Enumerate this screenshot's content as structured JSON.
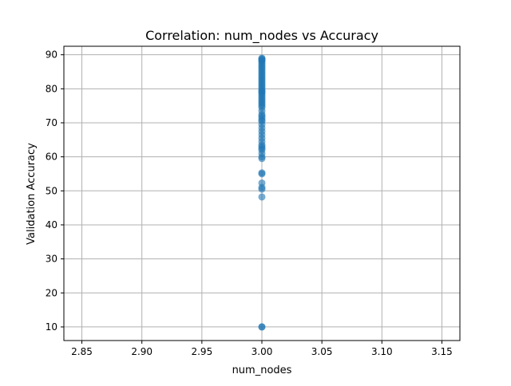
{
  "chart_data": {
    "type": "scatter",
    "title": "Correlation: num_nodes vs Accuracy",
    "xlabel": "num_nodes",
    "ylabel": "Validation Accuracy",
    "xlim": [
      2.835,
      3.165
    ],
    "ylim": [
      6.0,
      92.5
    ],
    "xticks": [
      2.85,
      2.9,
      2.95,
      3.0,
      3.05,
      3.1,
      3.15
    ],
    "xtick_labels": [
      "2.85",
      "2.90",
      "2.95",
      "3.00",
      "3.05",
      "3.10",
      "3.15"
    ],
    "yticks": [
      10,
      20,
      30,
      40,
      50,
      60,
      70,
      80,
      90
    ],
    "ytick_labels": [
      "10",
      "20",
      "30",
      "40",
      "50",
      "60",
      "70",
      "80",
      "90"
    ],
    "grid": true,
    "marker_color": "#1f77b4",
    "marker_alpha": 0.6,
    "series": [
      {
        "x": [
          3.0,
          3.0,
          3.0,
          3.0,
          3.0,
          3.0,
          3.0,
          3.0,
          3.0,
          3.0,
          3.0,
          3.0,
          3.0,
          3.0,
          3.0,
          3.0,
          3.0,
          3.0,
          3.0,
          3.0,
          3.0,
          3.0,
          3.0,
          3.0,
          3.0,
          3.0,
          3.0,
          3.0,
          3.0,
          3.0,
          3.0,
          3.0,
          3.0,
          3.0,
          3.0,
          3.0,
          3.0,
          3.0,
          3.0,
          3.0,
          3.0,
          3.0,
          3.0,
          3.0,
          3.0,
          3.0,
          3.0,
          3.0,
          3.0,
          3.0,
          3.0,
          3.0,
          3.0,
          3.0,
          3.0,
          3.0,
          3.0,
          3.0,
          3.0,
          3.0
        ],
        "y": [
          10.0,
          10.0,
          48.2,
          50.5,
          51.0,
          52.3,
          55.0,
          55.3,
          59.5,
          60.0,
          61.0,
          62.0,
          62.5,
          63.0,
          63.5,
          64.5,
          65.5,
          66.5,
          67.5,
          68.5,
          69.5,
          70.5,
          71.5,
          72.0,
          72.5,
          73.5,
          74.5,
          75.0,
          75.5,
          76.0,
          76.5,
          77.0,
          77.5,
          78.0,
          78.5,
          79.0,
          79.5,
          80.0,
          80.5,
          81.0,
          81.5,
          82.0,
          82.5,
          83.0,
          83.5,
          84.0,
          84.5,
          85.0,
          85.5,
          86.0,
          86.5,
          87.0,
          87.5,
          88.0,
          88.3,
          88.6,
          88.8,
          89.0,
          79.2,
          70.8
        ]
      }
    ]
  }
}
